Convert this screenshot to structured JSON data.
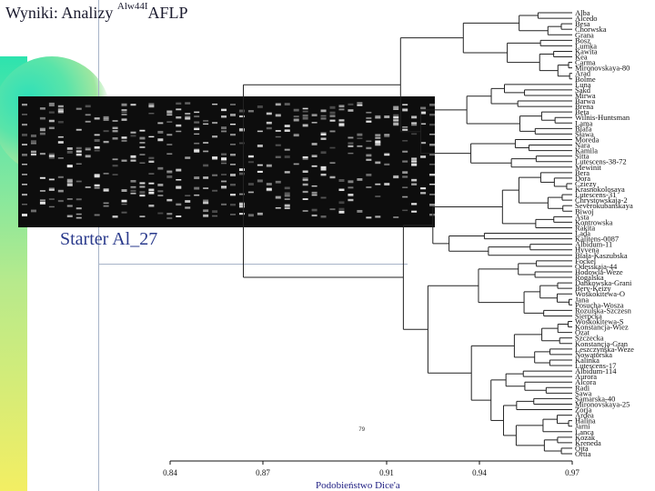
{
  "slide": {
    "title_main": "Wyniki: Analizy ",
    "title_sup": "Alw44I",
    "title_end": "AFLP",
    "starter_label": "Starter Al_27",
    "bootstrap_label": "79"
  },
  "dendrogram": {
    "x_axis_label": "Podobieństwo Dice'a",
    "x_ticks": [
      "0.84",
      "0.87",
      "0.91",
      "0.94",
      "0.97"
    ],
    "x_range": [
      0.84,
      0.97
    ],
    "leaves": [
      "Alba",
      "Alcedo",
      "Besa",
      "Chorwska",
      "Grana",
      "Bosz",
      "Lumka",
      "Kawita",
      "Kea",
      "Carma",
      "Mironovskaya-80",
      "Arad",
      "Bolme",
      "Luna",
      "Sakd",
      "Mirwa",
      "Barwa",
      "Brena",
      "Beta",
      "Wilnis-Huntsman",
      "Lama",
      "Blafa",
      "Sława",
      "Moreda",
      "Nara",
      "Kamila",
      "Sitta",
      "Lutescens-38-72",
      "Mewinit",
      "Bera",
      "Dora",
      "Cziezy",
      "Krasnokolosaya",
      "Lutescens-31",
      "Chrystowskaja-2",
      "Severokubanskaya",
      "Biwoj",
      "Asta",
      "Kontrowska",
      "Rakita",
      "Lada",
      "Kalitens-0087",
      "Albidum-11",
      "Hyvena",
      "Biała-Kaszubska",
      "Fockel",
      "Odesskaja-44",
      "Hodowla-Weze",
      "Rogalska",
      "Dankowska-Grani",
      "Bery-Keizy",
      "Woskokitewa-O",
      "Jana",
      "Posucha-Wosza",
      "Rozulska-Szczesn",
      "Sierpcka",
      "Woskokitewa-S",
      "Konstancja-Wiez",
      "Ozat",
      "Szczecka",
      "Konstancja-Gran",
      "Leszczyńska-Weze",
      "Nowatorska",
      "Kalinka",
      "Lutescens-17",
      "Albidum-114",
      "Aurora",
      "Alcora",
      "Radi",
      "Sawa",
      "Samarska-40",
      "Mironovskaya-25",
      "Zorja",
      "Ardea",
      "Halina",
      "Jarni",
      "Lanca",
      "Kozak",
      "Kreneda",
      "Ojta",
      "Ortia"
    ]
  }
}
